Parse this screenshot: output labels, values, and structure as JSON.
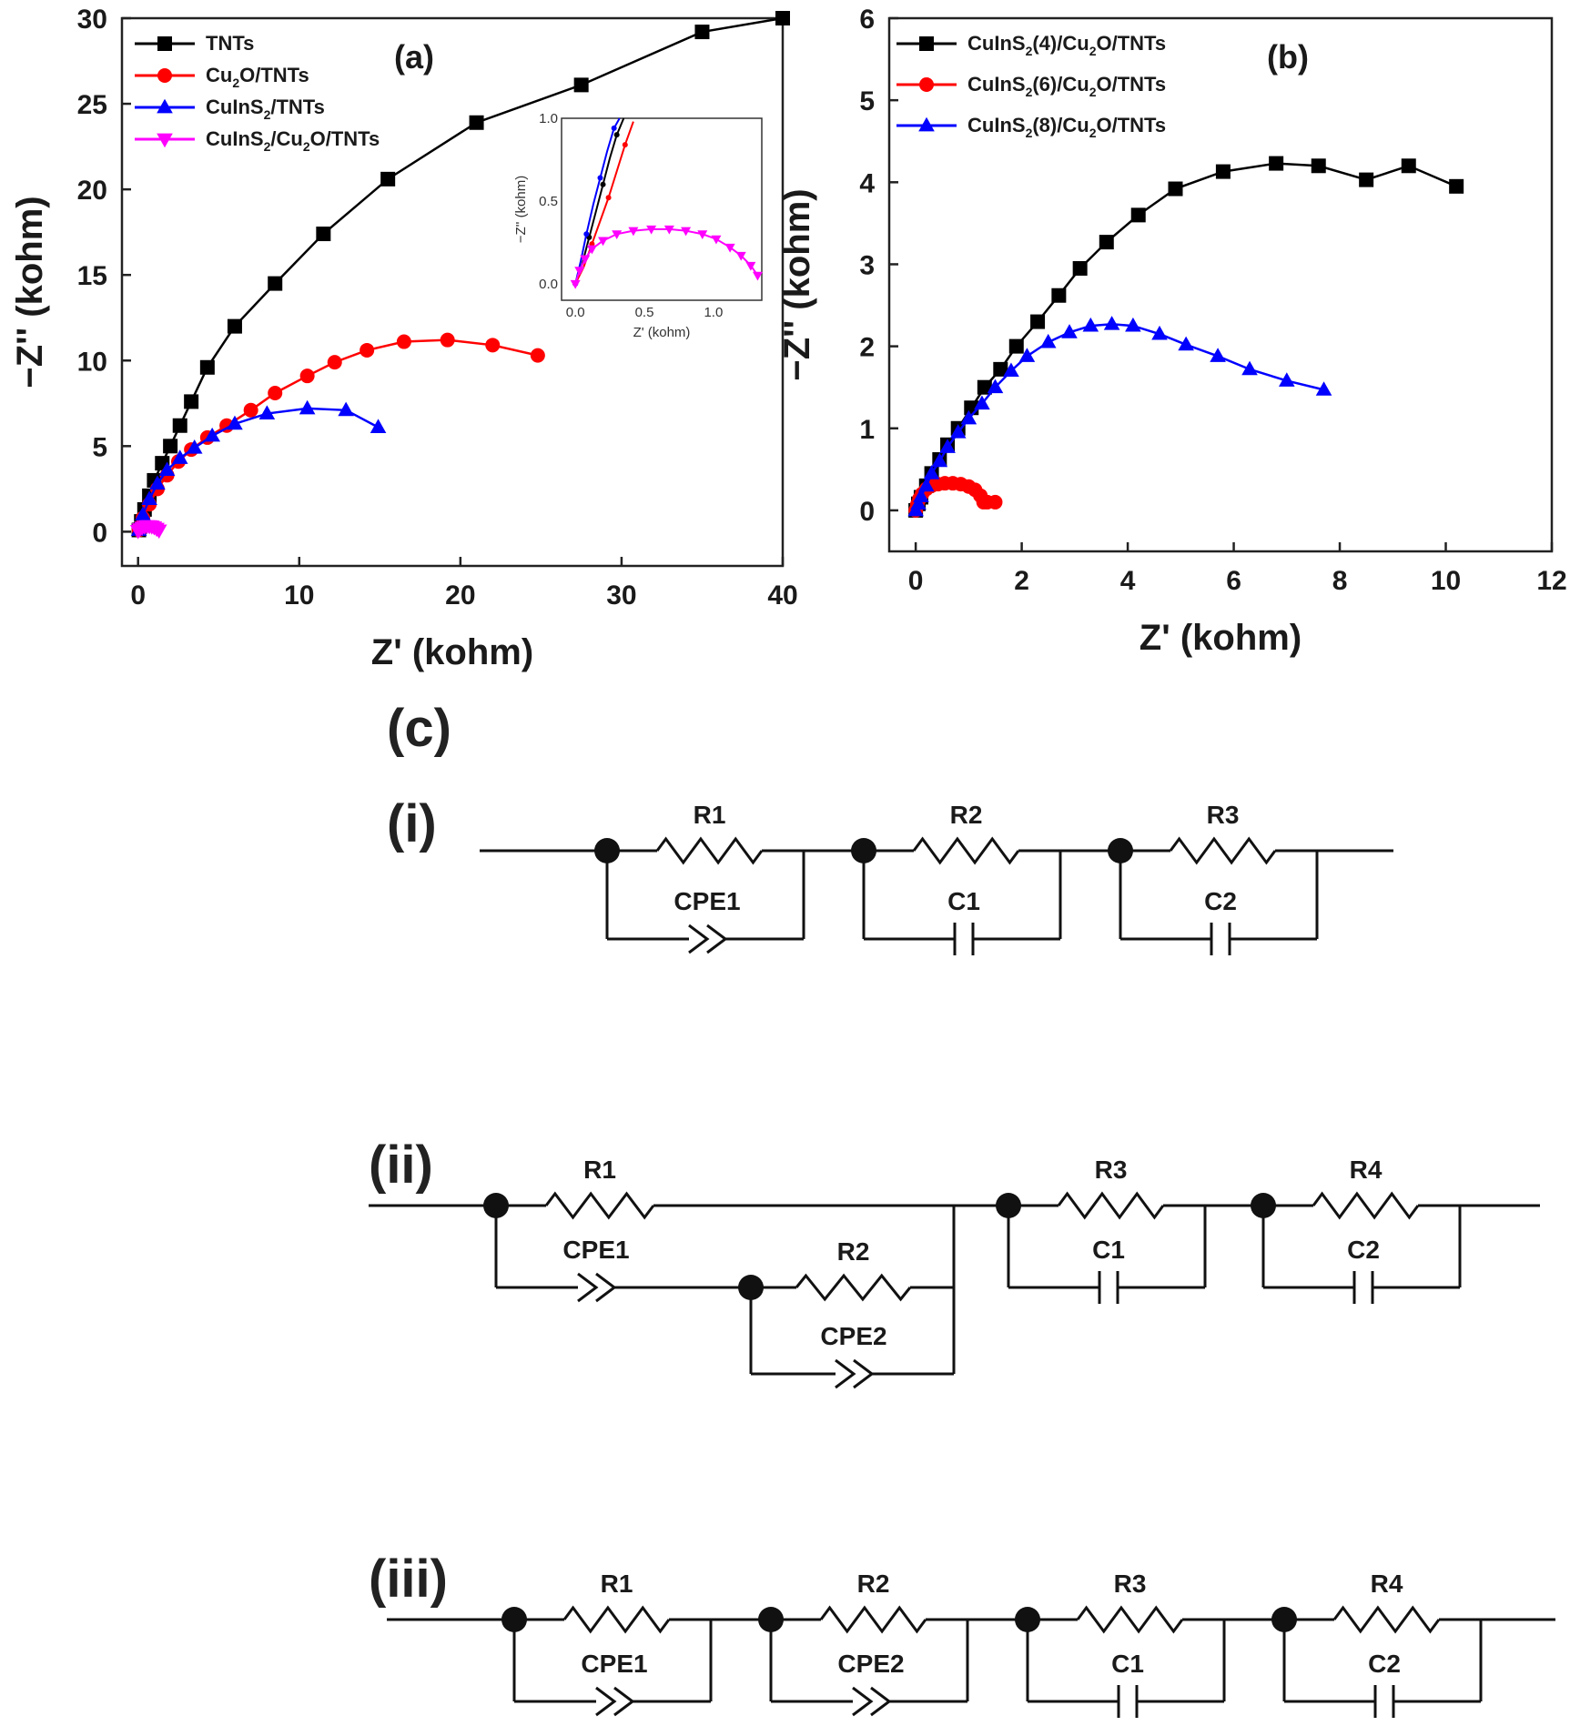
{
  "chart_data": [
    {
      "type": "line",
      "panel_label": "(a)",
      "xlabel": "Z' (kohm)",
      "ylabel": "−Z'' (kohm)",
      "xlim": [
        -1,
        40
      ],
      "ylim": [
        -2,
        30
      ],
      "x_ticks": [
        0,
        10,
        20,
        30,
        40
      ],
      "y_ticks": [
        0,
        5,
        10,
        15,
        20,
        25,
        30
      ],
      "legend_position": "top-left",
      "series": [
        {
          "name": "TNTs",
          "color": "#000000",
          "marker": "square",
          "x": [
            0.05,
            0.2,
            0.4,
            0.7,
            1.0,
            1.5,
            2.0,
            2.6,
            3.3,
            4.3,
            6.0,
            8.5,
            11.5,
            15.5,
            21,
            27.5,
            35,
            40
          ],
          "y": [
            0.1,
            0.6,
            1.3,
            2.1,
            3.0,
            4.0,
            5.0,
            6.2,
            7.6,
            9.6,
            12.0,
            14.5,
            17.4,
            20.6,
            23.9,
            26.1,
            29.2,
            30
          ]
        },
        {
          "name": "Cu2O/TNTs",
          "color": "#ff0000",
          "marker": "circle",
          "x": [
            0.05,
            0.3,
            0.7,
            1.2,
            1.8,
            2.5,
            3.3,
            4.3,
            5.5,
            7.0,
            8.5,
            10.5,
            12.2,
            14.2,
            16.5,
            19.2,
            22.0,
            24.8
          ],
          "y": [
            0.1,
            0.8,
            1.6,
            2.5,
            3.3,
            4.1,
            4.8,
            5.5,
            6.2,
            7.1,
            8.1,
            9.1,
            9.9,
            10.6,
            11.1,
            11.2,
            10.9,
            10.3
          ]
        },
        {
          "name": "CuInS2/TNTs",
          "color": "#0000ff",
          "marker": "triangle-up",
          "x": [
            0.05,
            0.3,
            0.7,
            1.2,
            1.8,
            2.6,
            3.5,
            4.6,
            6.0,
            8.0,
            10.5,
            12.9,
            14.9
          ],
          "y": [
            0.1,
            1.0,
            1.9,
            2.8,
            3.6,
            4.3,
            4.9,
            5.6,
            6.3,
            6.9,
            7.2,
            7.1,
            6.1
          ]
        },
        {
          "name": "CuInS2/Cu2O/TNTs",
          "color": "#ff00ff",
          "marker": "triangle-down",
          "x": [
            0.0,
            0.1,
            0.25,
            0.4,
            0.55,
            0.7,
            0.85,
            1.0,
            1.15,
            1.3
          ],
          "y": [
            0.05,
            0.15,
            0.25,
            0.3,
            0.33,
            0.33,
            0.31,
            0.26,
            0.18,
            0.08
          ]
        }
      ],
      "legend": [
        {
          "text": "TNTs"
        },
        {
          "parts": [
            "Cu",
            "2",
            "O/TNTs"
          ]
        },
        {
          "parts": [
            "CuInS",
            "2",
            "/TNTs"
          ]
        },
        {
          "parts": [
            "CuInS",
            "2",
            "/Cu",
            "2",
            "O/TNTs"
          ]
        }
      ],
      "inset": {
        "xlabel": "Z' (kohm)",
        "ylabel": "−Z'' (kohm)",
        "xlim": [
          -0.1,
          1.35
        ],
        "ylim": [
          -0.1,
          1.0
        ],
        "x_ticks": [
          "0.0",
          "0.5",
          "1.0"
        ],
        "y_ticks": [
          "0.0",
          "0.5",
          "1.0"
        ],
        "series": [
          {
            "name": "TNTs",
            "color": "#000000",
            "x": [
              0.0,
              0.05,
              0.1,
              0.15,
              0.2,
              0.25,
              0.3,
              0.35
            ],
            "y": [
              0.0,
              0.12,
              0.28,
              0.44,
              0.6,
              0.76,
              0.9,
              1.0
            ]
          },
          {
            "name": "Cu2O/TNTs",
            "color": "#ff0000",
            "x": [
              0.0,
              0.06,
              0.12,
              0.18,
              0.24,
              0.3,
              0.36,
              0.42
            ],
            "y": [
              0.0,
              0.1,
              0.24,
              0.38,
              0.52,
              0.68,
              0.84,
              0.98
            ]
          },
          {
            "name": "CuInS2/TNTs",
            "color": "#0000ff",
            "x": [
              0.0,
              0.04,
              0.08,
              0.13,
              0.18,
              0.23,
              0.28,
              0.32
            ],
            "y": [
              0.0,
              0.14,
              0.3,
              0.48,
              0.64,
              0.8,
              0.94,
              1.0
            ]
          },
          {
            "name": "CuInS2/Cu2O/TNTs",
            "color": "#ff00ff",
            "x": [
              0.0,
              0.03,
              0.07,
              0.12,
              0.2,
              0.3,
              0.42,
              0.55,
              0.68,
              0.8,
              0.92,
              1.02,
              1.12,
              1.2,
              1.27,
              1.32
            ],
            "y": [
              0.0,
              0.08,
              0.15,
              0.21,
              0.26,
              0.3,
              0.32,
              0.33,
              0.33,
              0.32,
              0.3,
              0.27,
              0.22,
              0.17,
              0.11,
              0.05
            ]
          }
        ]
      }
    },
    {
      "type": "line",
      "panel_label": "(b)",
      "xlabel": "Z' (kohm)",
      "ylabel": "−Z'' (kohm)",
      "xlim": [
        -0.5,
        12
      ],
      "ylim": [
        -0.5,
        6
      ],
      "x_ticks": [
        0,
        2,
        4,
        6,
        8,
        10,
        12
      ],
      "y_ticks": [
        0,
        1,
        2,
        3,
        4,
        5,
        6
      ],
      "legend_position": "top-left",
      "series": [
        {
          "name": "CuInS2(4)/Cu2O/TNTs",
          "color": "#000000",
          "marker": "square",
          "x": [
            0.0,
            0.05,
            0.1,
            0.2,
            0.3,
            0.45,
            0.6,
            0.8,
            1.05,
            1.3,
            1.6,
            1.9,
            2.3,
            2.7,
            3.1,
            3.6,
            4.2,
            4.9,
            5.8,
            6.8,
            7.6,
            8.5,
            9.3,
            10.2
          ],
          "y": [
            0.0,
            0.08,
            0.16,
            0.3,
            0.45,
            0.62,
            0.8,
            1.0,
            1.25,
            1.5,
            1.72,
            2.0,
            2.3,
            2.62,
            2.95,
            3.27,
            3.6,
            3.92,
            4.13,
            4.23,
            4.2,
            4.03,
            4.2,
            3.95
          ]
        },
        {
          "name": "CuInS2(6)/Cu2O/TNTs",
          "color": "#ff0000",
          "marker": "circle",
          "x": [
            0.0,
            0.03,
            0.07,
            0.12,
            0.2,
            0.3,
            0.42,
            0.55,
            0.7,
            0.85,
            1.0,
            1.12,
            1.22,
            1.28,
            1.35,
            1.5
          ],
          "y": [
            0.0,
            0.07,
            0.14,
            0.2,
            0.26,
            0.3,
            0.32,
            0.33,
            0.33,
            0.32,
            0.29,
            0.25,
            0.18,
            0.1,
            0.1,
            0.1
          ]
        },
        {
          "name": "CuInS2(8)/Cu2O/TNTs",
          "color": "#0000ff",
          "marker": "triangle-up",
          "x": [
            0.0,
            0.05,
            0.1,
            0.2,
            0.3,
            0.45,
            0.6,
            0.8,
            1.0,
            1.25,
            1.5,
            1.8,
            2.1,
            2.5,
            2.9,
            3.3,
            3.7,
            4.1,
            4.6,
            5.1,
            5.7,
            6.3,
            7.0,
            7.7
          ],
          "y": [
            0.0,
            0.08,
            0.17,
            0.3,
            0.45,
            0.6,
            0.77,
            0.95,
            1.12,
            1.3,
            1.5,
            1.7,
            1.88,
            2.05,
            2.17,
            2.25,
            2.27,
            2.25,
            2.15,
            2.02,
            1.88,
            1.72,
            1.58,
            1.47
          ]
        }
      ],
      "legend": [
        {
          "parts": [
            "CuInS",
            "2",
            "(4)/Cu",
            "2",
            "O/TNTs"
          ]
        },
        {
          "parts": [
            "CuInS",
            "2",
            "(6)/Cu",
            "2",
            "O/TNTs"
          ]
        },
        {
          "parts": [
            "CuInS",
            "2",
            "(8)/Cu",
            "2",
            "O/TNTs"
          ]
        }
      ]
    }
  ],
  "circuits": {
    "panel_label": "(c)",
    "circuit_i": {
      "label": "(i)",
      "sections": [
        {
          "r": "R1",
          "p": "CPE1",
          "ptype": "cpe"
        },
        {
          "r": "R2",
          "p": "C1",
          "ptype": "cap"
        },
        {
          "r": "R3",
          "p": "C2",
          "ptype": "cap"
        }
      ]
    },
    "circuit_ii": {
      "label": "(ii)",
      "nested": {
        "r_outer": "R1",
        "cpe_outer": "CPE1",
        "r_inner": "R2",
        "cpe_inner": "CPE2"
      },
      "sections": [
        {
          "r": "R3",
          "p": "C1",
          "ptype": "cap"
        },
        {
          "r": "R4",
          "p": "C2",
          "ptype": "cap"
        }
      ]
    },
    "circuit_iii": {
      "label": "(iii)",
      "sections": [
        {
          "r": "R1",
          "p": "CPE1",
          "ptype": "cpe"
        },
        {
          "r": "R2",
          "p": "CPE2",
          "ptype": "cpe"
        },
        {
          "r": "R3",
          "p": "C1",
          "ptype": "cap"
        },
        {
          "r": "R4",
          "p": "C2",
          "ptype": "cap"
        }
      ]
    }
  }
}
